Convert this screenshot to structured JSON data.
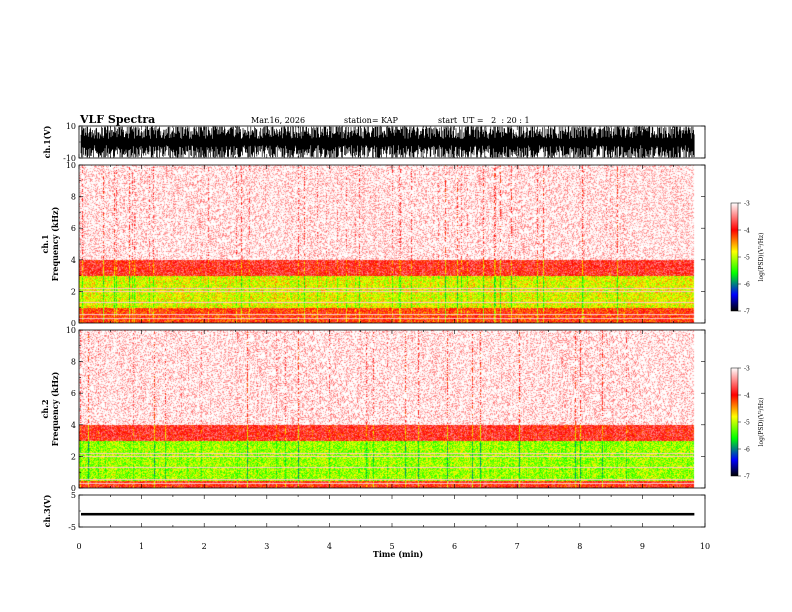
{
  "header": {
    "title": "VLF Spectra",
    "date": "Mar.16, 2026",
    "station": "station= KAP",
    "start_ut": "start  UT =   2  : 20 : 1"
  },
  "colorbar": {
    "label": "log(PSD)(V²/Hz)",
    "ticks": [
      "-3",
      "-4",
      "-5",
      "-6",
      "-7"
    ],
    "colors": [
      "#ffffff",
      "#ff0000",
      "#ffff00",
      "#00ff00",
      "#0000ff",
      "#000000"
    ]
  },
  "chart_data": [
    {
      "type": "line",
      "name": "ch.1 waveform",
      "ylabel": "ch.1(V)",
      "ylim": [
        -10,
        10
      ],
      "yticks": [
        "10",
        "-10"
      ],
      "xlim": [
        0,
        10
      ],
      "description_values": {
        "amplitude_range_V": [
          -10,
          10
        ],
        "data_end_min": 9.83
      }
    },
    {
      "type": "heatmap",
      "name": "ch.1 spectrogram",
      "ylabel": "ch.1 Frequency (kHz)",
      "ylim": [
        0,
        10
      ],
      "yticks": [
        "0",
        "2",
        "4",
        "6",
        "8",
        "10"
      ],
      "xlim": [
        0,
        10
      ],
      "bands_kHz": [
        {
          "from": 0.0,
          "to": 1.0,
          "level": -4.0
        },
        {
          "from": 1.0,
          "to": 3.0,
          "level": -4.6
        },
        {
          "from": 3.0,
          "to": 4.0,
          "level": -3.8
        },
        {
          "from": 4.0,
          "to": 10.0,
          "level": -3.2
        }
      ],
      "clim": [
        -7,
        -3
      ]
    },
    {
      "type": "heatmap",
      "name": "ch.2 spectrogram",
      "ylabel": "ch.2 Frequency (kHz)",
      "ylim": [
        0,
        10
      ],
      "yticks": [
        "0",
        "2",
        "4",
        "6",
        "8",
        "10"
      ],
      "xlim": [
        0,
        10
      ],
      "bands_kHz": [
        {
          "from": 0.0,
          "to": 0.5,
          "level": -3.9
        },
        {
          "from": 0.5,
          "to": 3.0,
          "level": -4.8
        },
        {
          "from": 3.0,
          "to": 4.0,
          "level": -3.8
        },
        {
          "from": 4.0,
          "to": 10.0,
          "level": -3.2
        }
      ],
      "clim": [
        -7,
        -3
      ]
    },
    {
      "type": "line",
      "name": "ch.3 waveform",
      "ylabel": "ch.3(V)",
      "ylim": [
        -5,
        5
      ],
      "yticks": [
        "5",
        "-5"
      ],
      "xlim": [
        0,
        10
      ],
      "description_values": {
        "mean_V": -1.0,
        "half_thickness_V": 0.4,
        "data_end_min": 9.83
      }
    }
  ],
  "xaxis": {
    "label": "Time (min)",
    "ticks": [
      "0",
      "1",
      "2",
      "3",
      "4",
      "5",
      "6",
      "7",
      "8",
      "9",
      "10"
    ],
    "range": [
      0,
      10
    ]
  }
}
